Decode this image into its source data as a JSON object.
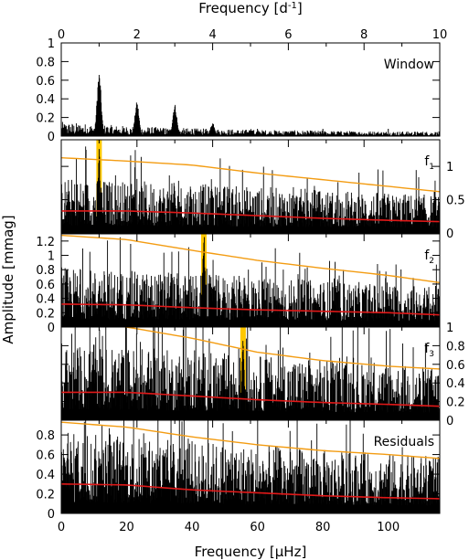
{
  "chart_data": {
    "type": "line",
    "top_axis": {
      "label": "Frequency [d",
      "label_sup": "-1",
      "label_end": "]",
      "range": [
        0,
        10
      ],
      "ticks": [
        "0",
        "2",
        "4",
        "6",
        "8",
        "10"
      ]
    },
    "bottom_axis": {
      "label": "Frequency [μHz]",
      "range": [
        0,
        115.74
      ],
      "ticks": [
        "0",
        "20",
        "40",
        "60",
        "80",
        "100"
      ]
    },
    "ylabel": "Amplitude [mmag]",
    "colors": {
      "data": "#000000",
      "threshold": "#f39c12",
      "noise": "#e01818",
      "highlight": "#ffc800"
    },
    "panels": [
      {
        "label": "Window",
        "label_sub": "",
        "ylim": [
          0,
          1
        ],
        "y_ticks": [
          "0",
          "0.2",
          "0.4",
          "0.6",
          "0.8",
          "1"
        ],
        "tick_side": "left",
        "peaks": [
          [
            11.57,
            0.69
          ],
          [
            23.15,
            0.37
          ],
          [
            34.72,
            0.35
          ],
          [
            46.3,
            0.15
          ],
          [
            57.9,
            0.08
          ]
        ],
        "base": 0.05,
        "has_threshold": false
      },
      {
        "label": "f",
        "label_sub": "1",
        "ylim": [
          0,
          1.4
        ],
        "y_ticks": [
          "0",
          "0.5",
          "1"
        ],
        "tick_side": "right",
        "highlight_x": 11.57,
        "peaks": [
          [
            11.57,
            1.3
          ],
          [
            22.3,
            0.72
          ],
          [
            30.1,
            0.62
          ],
          [
            34.6,
            0.76
          ],
          [
            39.5,
            0.72
          ],
          [
            46.0,
            0.85
          ],
          [
            48.5,
            0.7
          ],
          [
            63.2,
            0.62
          ],
          [
            71.7,
            0.53
          ],
          [
            78.3,
            0.5
          ]
        ],
        "base": 0.3,
        "threshold": [
          [
            0,
            1.13
          ],
          [
            20,
            1.08
          ],
          [
            40,
            1.02
          ],
          [
            60,
            0.9
          ],
          [
            80,
            0.8
          ],
          [
            100,
            0.7
          ],
          [
            115.74,
            0.62
          ]
        ],
        "noise": [
          [
            0,
            0.33
          ],
          [
            20,
            0.33
          ],
          [
            40,
            0.3
          ],
          [
            60,
            0.26
          ],
          [
            80,
            0.22
          ],
          [
            100,
            0.19
          ],
          [
            115.74,
            0.17
          ]
        ],
        "has_threshold": true
      },
      {
        "label": "f",
        "label_sub": "2",
        "ylim": [
          0,
          1.3
        ],
        "y_ticks": [
          "0",
          "0.2",
          "0.4",
          "0.6",
          "0.8",
          "1",
          "1.2"
        ],
        "tick_side": "left",
        "highlight_x": 43.6,
        "peaks": [
          [
            11.6,
            0.72
          ],
          [
            20.5,
            0.62
          ],
          [
            33.5,
            0.78
          ],
          [
            43.6,
            1.4
          ],
          [
            46.5,
            0.7
          ],
          [
            54.5,
            0.78
          ],
          [
            56.0,
            0.72
          ],
          [
            60.5,
            0.5
          ],
          [
            78.5,
            0.45
          ]
        ],
        "base": 0.3,
        "threshold": [
          [
            0,
            1.28
          ],
          [
            20,
            1.22
          ],
          [
            40,
            1.07
          ],
          [
            60,
            0.93
          ],
          [
            80,
            0.82
          ],
          [
            100,
            0.72
          ],
          [
            115.74,
            0.62
          ]
        ],
        "noise": [
          [
            0,
            0.32
          ],
          [
            20,
            0.31
          ],
          [
            40,
            0.27
          ],
          [
            60,
            0.24
          ],
          [
            80,
            0.22
          ],
          [
            100,
            0.2
          ],
          [
            115.74,
            0.17
          ]
        ],
        "has_threshold": true
      },
      {
        "label": "f",
        "label_sub": "3",
        "ylim": [
          0,
          1.0
        ],
        "y_ticks": [
          "0",
          "0.2",
          "0.4",
          "0.6",
          "0.8",
          "1"
        ],
        "tick_side": "right",
        "highlight_x": 55.6,
        "peaks": [
          [
            1.5,
            0.82
          ],
          [
            10.5,
            0.75
          ],
          [
            28.5,
            0.74
          ],
          [
            31.5,
            0.68
          ],
          [
            37.0,
            0.55
          ],
          [
            55.6,
            1.0
          ],
          [
            64.0,
            0.47
          ],
          [
            79.0,
            0.5
          ]
        ],
        "base": 0.3,
        "threshold": [
          [
            0,
            1.1
          ],
          [
            20,
            1.0
          ],
          [
            40,
            0.88
          ],
          [
            60,
            0.73
          ],
          [
            80,
            0.64
          ],
          [
            100,
            0.58
          ],
          [
            115.74,
            0.55
          ]
        ],
        "noise": [
          [
            0,
            0.3
          ],
          [
            20,
            0.3
          ],
          [
            40,
            0.26
          ],
          [
            60,
            0.22
          ],
          [
            80,
            0.19
          ],
          [
            100,
            0.17
          ],
          [
            115.74,
            0.15
          ]
        ],
        "has_threshold": true
      },
      {
        "label": "Residuals",
        "label_sub": "",
        "ylim": [
          0,
          0.95
        ],
        "y_ticks": [
          "0",
          "0.2",
          "0.4",
          "0.6",
          "0.8"
        ],
        "tick_side": "left",
        "peaks": [
          [
            2.0,
            0.78
          ],
          [
            5.0,
            0.72
          ],
          [
            12.0,
            0.68
          ],
          [
            30.0,
            0.66
          ],
          [
            34.0,
            0.62
          ]
        ],
        "base": 0.3,
        "threshold": [
          [
            0,
            0.93
          ],
          [
            20,
            0.88
          ],
          [
            40,
            0.78
          ],
          [
            60,
            0.7
          ],
          [
            80,
            0.64
          ],
          [
            100,
            0.6
          ],
          [
            115.74,
            0.56
          ]
        ],
        "noise": [
          [
            0,
            0.3
          ],
          [
            20,
            0.29
          ],
          [
            40,
            0.24
          ],
          [
            60,
            0.21
          ],
          [
            80,
            0.18
          ],
          [
            100,
            0.16
          ],
          [
            115.74,
            0.15
          ]
        ],
        "has_threshold": true
      }
    ]
  }
}
